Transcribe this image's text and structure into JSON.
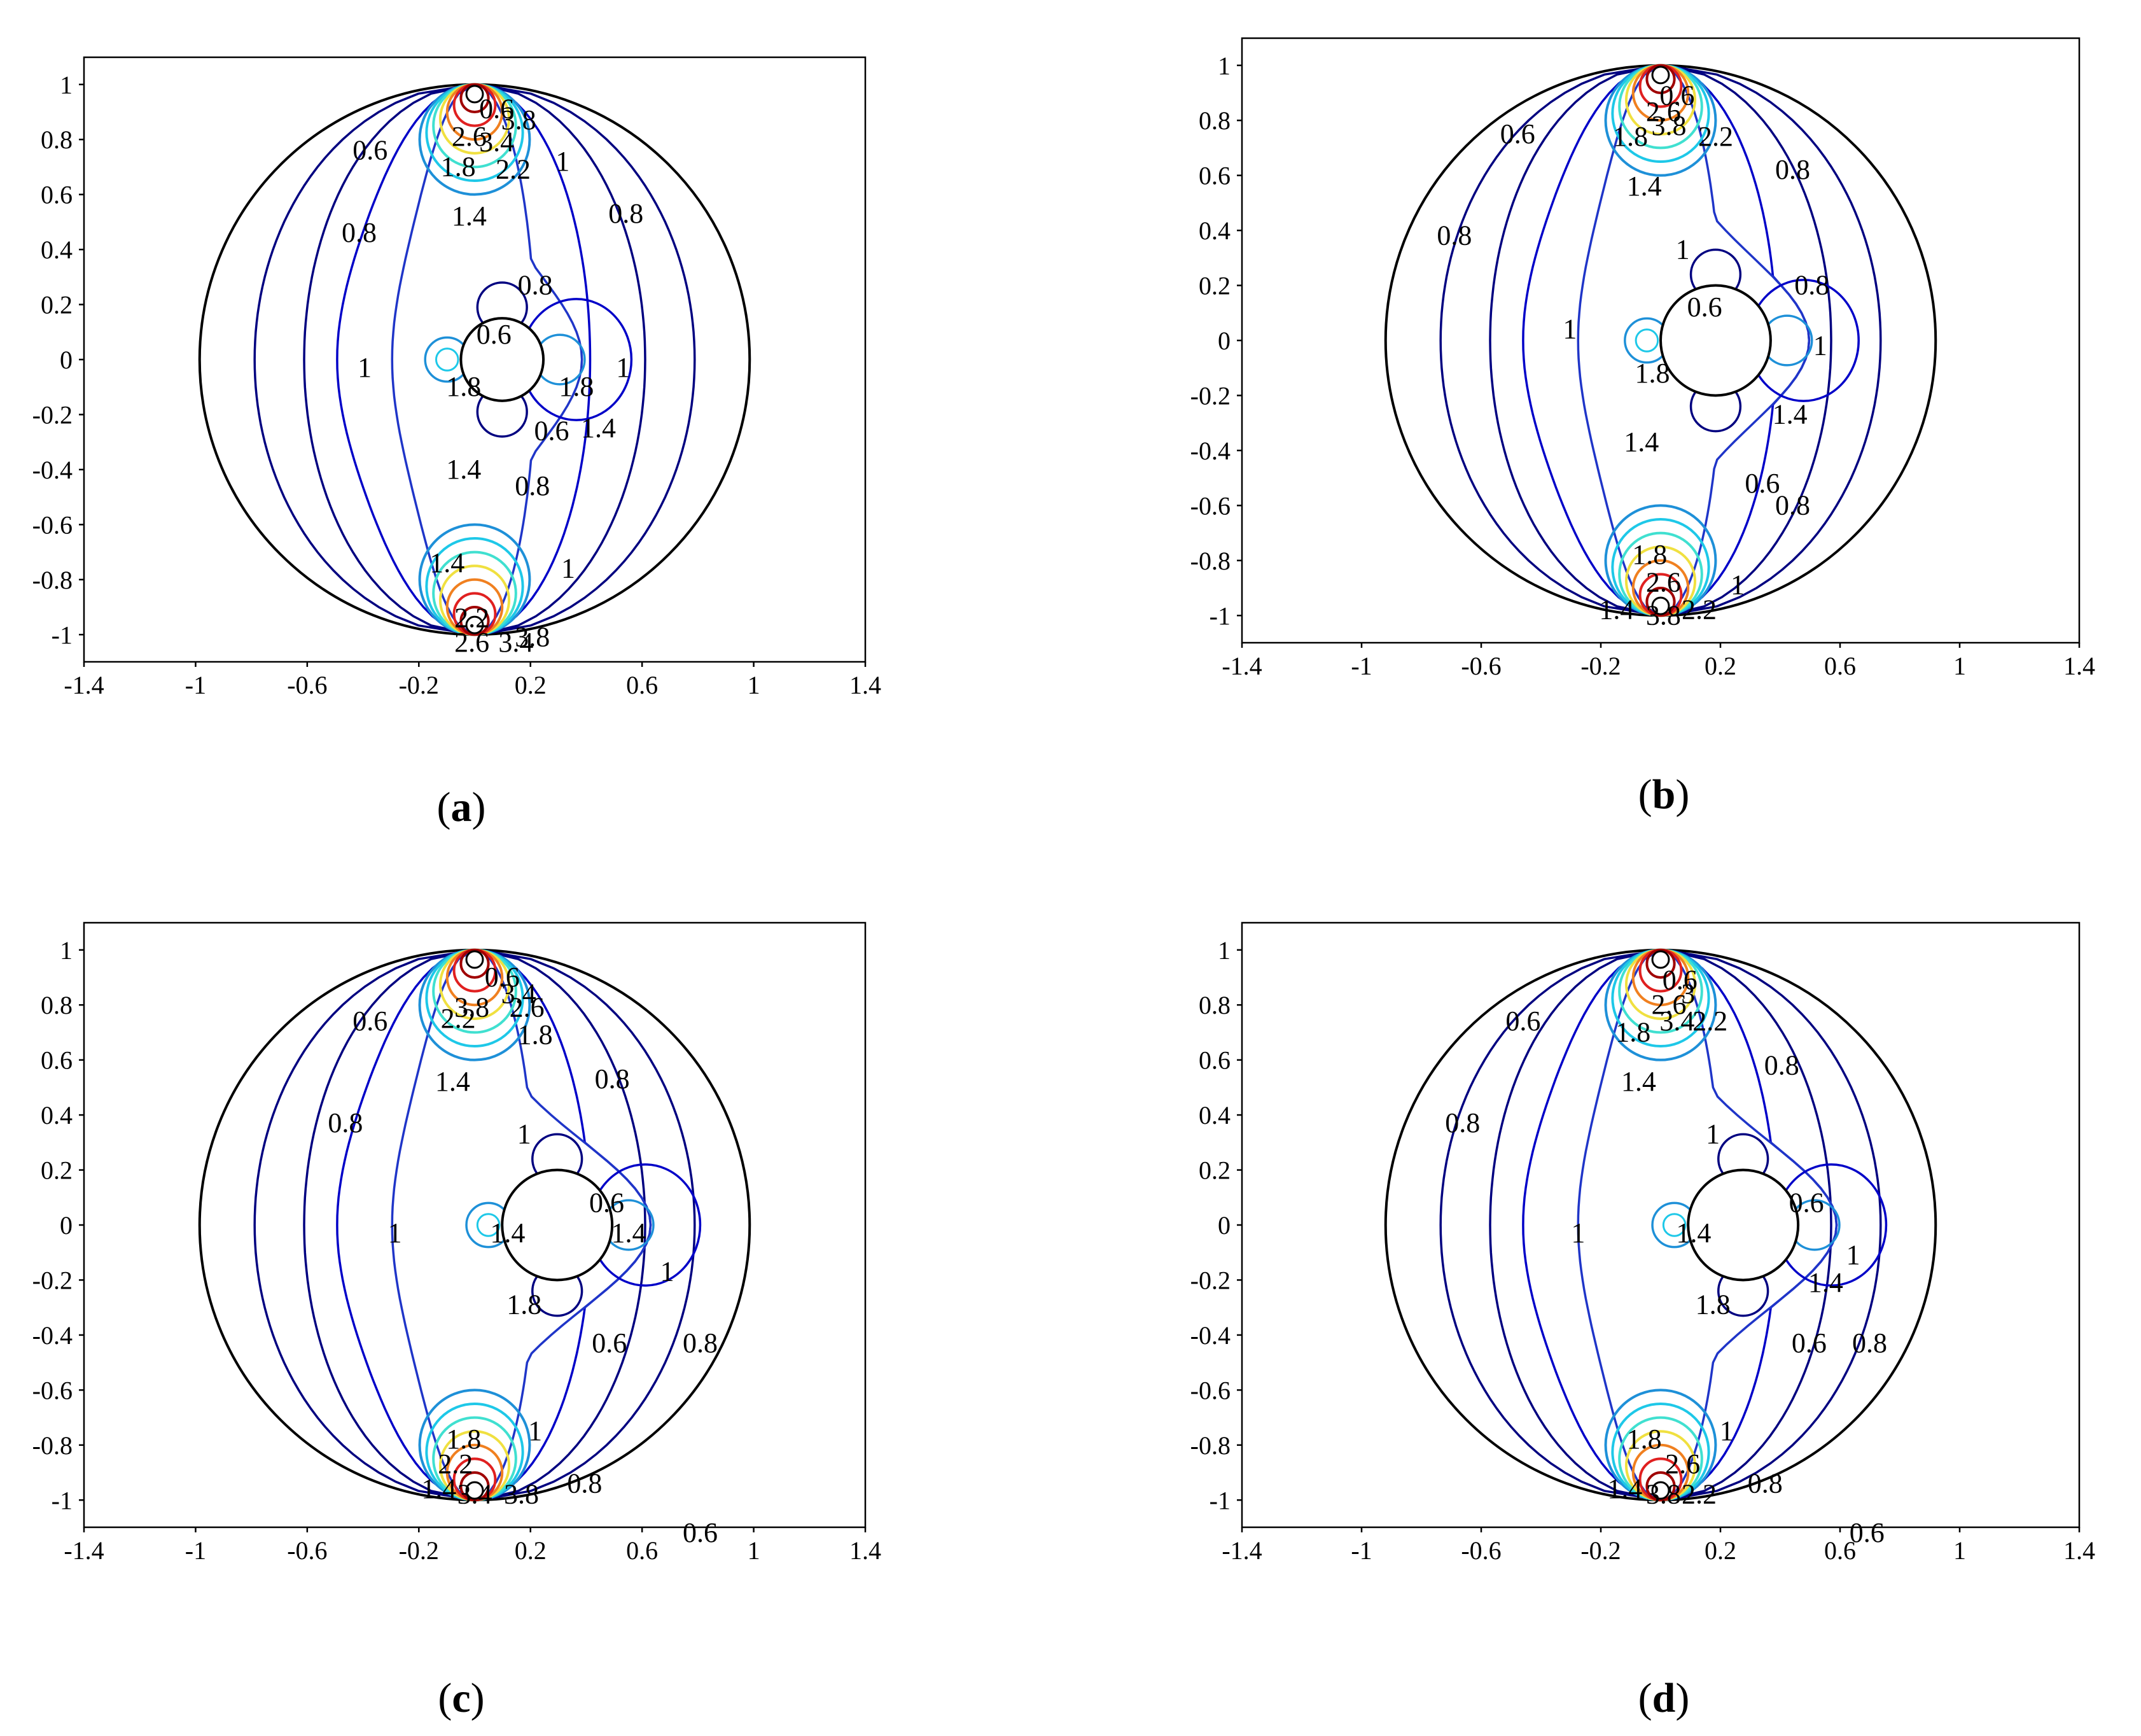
{
  "colors": {
    "boundary": "#000000",
    "level_0_6": "#000080",
    "level_0_8": "#0000c8",
    "level_1": "#1f35c8",
    "level_1_4": "#1e90d8",
    "level_1_8": "#1ec8e8",
    "level_2_2": "#40e0d0",
    "level_2_6": "#f0e040",
    "level_3": "#f08020",
    "level_3_4": "#e02020",
    "level_3_8": "#a00000"
  },
  "chart_data": [
    {
      "type": "contour",
      "caption": "a",
      "x_ticks": [
        "-1.4",
        "-1",
        "-0.6",
        "-0.2",
        "0.2",
        "0.6",
        "1",
        "1.4"
      ],
      "y_ticks": [
        "1",
        "0.8",
        "0.6",
        "0.4",
        "0.2",
        "0",
        "-0.2",
        "-0.4",
        "-0.6",
        "-0.8",
        "-1"
      ],
      "xlim": [
        -1.4,
        1.4
      ],
      "ylim": [
        -1.1,
        1.1
      ],
      "outer_circle": {
        "cx": 0,
        "cy": 0,
        "r": 1
      },
      "inner_cylinder": {
        "cx": 0.1,
        "cy": 0,
        "r": 0.15
      },
      "sources": [
        {
          "x": 0,
          "y": 1
        },
        {
          "x": 0,
          "y": -1
        }
      ],
      "labels": [
        {
          "text": "0.6",
          "x": -0.38,
          "y": 0.76
        },
        {
          "text": "0.8",
          "x": -0.42,
          "y": 0.46
        },
        {
          "text": "1",
          "x": -0.4,
          "y": -0.03
        },
        {
          "text": "1.4",
          "x": -0.02,
          "y": 0.52
        },
        {
          "text": "1.8",
          "x": -0.06,
          "y": 0.7
        },
        {
          "text": "2.2",
          "x": 0.14,
          "y": 0.69
        },
        {
          "text": "2.6",
          "x": -0.02,
          "y": 0.81
        },
        {
          "text": "3.4",
          "x": 0.08,
          "y": 0.79
        },
        {
          "text": "0.6",
          "x": 0.08,
          "y": 0.91
        },
        {
          "text": "3.8",
          "x": 0.16,
          "y": 0.87
        },
        {
          "text": "1",
          "x": 0.32,
          "y": 0.72
        },
        {
          "text": "0.8",
          "x": 0.55,
          "y": 0.53
        },
        {
          "text": "0.8",
          "x": 0.22,
          "y": 0.27
        },
        {
          "text": "0.6",
          "x": 0.07,
          "y": 0.09
        },
        {
          "text": "1.8",
          "x": -0.04,
          "y": -0.1
        },
        {
          "text": "1.8",
          "x": 0.37,
          "y": -0.1
        },
        {
          "text": "1",
          "x": 0.54,
          "y": -0.03
        },
        {
          "text": "1.4",
          "x": 0.45,
          "y": -0.25
        },
        {
          "text": "1.4",
          "x": -0.04,
          "y": -0.4
        },
        {
          "text": "0.6",
          "x": 0.28,
          "y": -0.26
        },
        {
          "text": "0.8",
          "x": 0.21,
          "y": -0.46
        },
        {
          "text": "1",
          "x": 0.34,
          "y": -0.76
        },
        {
          "text": "1.4",
          "x": -0.1,
          "y": -0.74
        },
        {
          "text": "2.2",
          "x": -0.01,
          "y": -0.94
        },
        {
          "text": "2.6",
          "x": -0.01,
          "y": -1.03
        },
        {
          "text": "3.4",
          "x": 0.15,
          "y": -1.03
        },
        {
          "text": "3.8",
          "x": 0.21,
          "y": -1.01
        }
      ]
    },
    {
      "type": "contour",
      "caption": "b",
      "x_ticks": [
        "-1.4",
        "-1",
        "-0.6",
        "-0.2",
        "0.2",
        "0.6",
        "1",
        "1.4"
      ],
      "y_ticks": [
        "1",
        "0.8",
        "0.6",
        "0.4",
        "0.2",
        "0",
        "-0.2",
        "-0.4",
        "-0.6",
        "-0.8",
        "-1"
      ],
      "xlim": [
        -1.4,
        1.4
      ],
      "ylim": [
        -1.1,
        1.1
      ],
      "outer_circle": {
        "cx": 0,
        "cy": 0,
        "r": 1
      },
      "inner_cylinder": {
        "cx": 0.2,
        "cy": 0,
        "r": 0.2
      },
      "sources": [
        {
          "x": 0,
          "y": 1
        },
        {
          "x": 0,
          "y": -1
        }
      ],
      "labels": [
        {
          "text": "0.6",
          "x": -0.52,
          "y": 0.75
        },
        {
          "text": "0.8",
          "x": -0.75,
          "y": 0.38
        },
        {
          "text": "1",
          "x": -0.33,
          "y": 0.04
        },
        {
          "text": "1.4",
          "x": -0.06,
          "y": 0.56
        },
        {
          "text": "1.8",
          "x": -0.11,
          "y": 0.74
        },
        {
          "text": "2.2",
          "x": 0.2,
          "y": 0.74
        },
        {
          "text": "3.8",
          "x": 0.03,
          "y": 0.78
        },
        {
          "text": "2.6",
          "x": 0.01,
          "y": 0.83
        },
        {
          "text": "0.6",
          "x": 0.06,
          "y": 0.89
        },
        {
          "text": "0.8",
          "x": 0.48,
          "y": 0.62
        },
        {
          "text": "1",
          "x": 0.08,
          "y": 0.33
        },
        {
          "text": "0.8",
          "x": 0.55,
          "y": 0.2
        },
        {
          "text": "0.6",
          "x": 0.16,
          "y": 0.12
        },
        {
          "text": "1",
          "x": 0.58,
          "y": -0.02
        },
        {
          "text": "1.8",
          "x": -0.03,
          "y": -0.12
        },
        {
          "text": "1.4",
          "x": 0.47,
          "y": -0.27
        },
        {
          "text": "1.4",
          "x": -0.07,
          "y": -0.37
        },
        {
          "text": "0.6",
          "x": 0.37,
          "y": -0.52
        },
        {
          "text": "0.8",
          "x": 0.48,
          "y": -0.6
        },
        {
          "text": "1.8",
          "x": -0.04,
          "y": -0.78
        },
        {
          "text": "2.6",
          "x": 0.01,
          "y": -0.88
        },
        {
          "text": "1",
          "x": 0.28,
          "y": -0.89
        },
        {
          "text": "1.4",
          "x": -0.16,
          "y": -0.98
        },
        {
          "text": "3.8",
          "x": 0.01,
          "y": -1.0
        },
        {
          "text": "2.2",
          "x": 0.14,
          "y": -0.98
        }
      ]
    },
    {
      "type": "contour",
      "caption": "c",
      "x_ticks": [
        "-1.4",
        "-1",
        "-0.6",
        "-0.2",
        "0.2",
        "0.6",
        "1",
        "1.4"
      ],
      "y_ticks": [
        "1",
        "0.8",
        "0.6",
        "0.4",
        "0.2",
        "0",
        "-0.2",
        "-0.4",
        "-0.6",
        "-0.8",
        "-1"
      ],
      "xlim": [
        -1.4,
        1.4
      ],
      "ylim": [
        -1.1,
        1.1
      ],
      "outer_circle": {
        "cx": 0,
        "cy": 0,
        "r": 1
      },
      "inner_cylinder": {
        "cx": 0.3,
        "cy": 0,
        "r": 0.2
      },
      "sources": [
        {
          "x": 0,
          "y": 1
        },
        {
          "x": 0,
          "y": -1
        }
      ],
      "labels": [
        {
          "text": "0.6",
          "x": -0.38,
          "y": 0.74
        },
        {
          "text": "0.8",
          "x": -0.47,
          "y": 0.37
        },
        {
          "text": "1",
          "x": -0.29,
          "y": -0.03
        },
        {
          "text": "1.4",
          "x": -0.08,
          "y": 0.52
        },
        {
          "text": "2.2",
          "x": -0.06,
          "y": 0.75
        },
        {
          "text": "3.8",
          "x": -0.01,
          "y": 0.79
        },
        {
          "text": "2.6",
          "x": 0.19,
          "y": 0.79
        },
        {
          "text": "3.4",
          "x": 0.16,
          "y": 0.84
        },
        {
          "text": "0.6",
          "x": 0.1,
          "y": 0.9
        },
        {
          "text": "1.8",
          "x": 0.22,
          "y": 0.69
        },
        {
          "text": "0.8",
          "x": 0.5,
          "y": 0.53
        },
        {
          "text": "1",
          "x": 0.18,
          "y": 0.33
        },
        {
          "text": "0.6",
          "x": 0.48,
          "y": 0.08
        },
        {
          "text": "1.4",
          "x": 0.12,
          "y": -0.03
        },
        {
          "text": "1.4",
          "x": 0.56,
          "y": -0.03
        },
        {
          "text": "1",
          "x": 0.7,
          "y": -0.17
        },
        {
          "text": "1.8",
          "x": 0.18,
          "y": -0.29
        },
        {
          "text": "0.6",
          "x": 0.49,
          "y": -0.43
        },
        {
          "text": "0.8",
          "x": 0.82,
          "y": -0.43
        },
        {
          "text": "1",
          "x": 0.22,
          "y": -0.75
        },
        {
          "text": "0.6",
          "x": 0.82,
          "y": -1.12
        },
        {
          "text": "1.8",
          "x": -0.04,
          "y": -0.78
        },
        {
          "text": "2.2",
          "x": -0.07,
          "y": -0.87
        },
        {
          "text": "0.8",
          "x": 0.4,
          "y": -0.94
        },
        {
          "text": "1.4",
          "x": -0.13,
          "y": -0.96
        },
        {
          "text": "3.4",
          "x": 0.0,
          "y": -0.98
        },
        {
          "text": "3.8",
          "x": 0.17,
          "y": -0.98
        }
      ]
    },
    {
      "type": "contour",
      "caption": "d",
      "x_ticks": [
        "-1.4",
        "-1",
        "-0.6",
        "-0.2",
        "0.2",
        "0.6",
        "1",
        "1.4"
      ],
      "y_ticks": [
        "1",
        "0.8",
        "0.6",
        "0.4",
        "0.2",
        "0",
        "-0.2",
        "-0.4",
        "-0.6",
        "-0.8",
        "-1"
      ],
      "xlim": [
        -1.4,
        1.4
      ],
      "ylim": [
        -1.1,
        1.1
      ],
      "outer_circle": {
        "cx": 0,
        "cy": 0,
        "r": 1
      },
      "inner_cylinder": {
        "cx": 0.3,
        "cy": 0,
        "r": 0.2
      },
      "sources": [
        {
          "x": 0,
          "y": 1
        },
        {
          "x": 0,
          "y": -1
        }
      ],
      "labels": [
        {
          "text": "0.6",
          "x": -0.5,
          "y": 0.74
        },
        {
          "text": "0.8",
          "x": -0.72,
          "y": 0.37
        },
        {
          "text": "1",
          "x": -0.3,
          "y": -0.03
        },
        {
          "text": "1.4",
          "x": -0.08,
          "y": 0.52
        },
        {
          "text": "1.8",
          "x": -0.1,
          "y": 0.7
        },
        {
          "text": "2.2",
          "x": 0.18,
          "y": 0.74
        },
        {
          "text": "3.4",
          "x": 0.06,
          "y": 0.74
        },
        {
          "text": "2.6",
          "x": 0.03,
          "y": 0.8
        },
        {
          "text": "3",
          "x": 0.1,
          "y": 0.84
        },
        {
          "text": "0.6",
          "x": 0.07,
          "y": 0.89
        },
        {
          "text": "0.8",
          "x": 0.44,
          "y": 0.58
        },
        {
          "text": "1",
          "x": 0.19,
          "y": 0.33
        },
        {
          "text": "0.6",
          "x": 0.53,
          "y": 0.08
        },
        {
          "text": "1.4",
          "x": 0.12,
          "y": -0.03
        },
        {
          "text": "1",
          "x": 0.7,
          "y": -0.11
        },
        {
          "text": "1.4",
          "x": 0.6,
          "y": -0.21
        },
        {
          "text": "1.8",
          "x": 0.19,
          "y": -0.29
        },
        {
          "text": "0.6",
          "x": 0.54,
          "y": -0.43
        },
        {
          "text": "0.8",
          "x": 0.76,
          "y": -0.43
        },
        {
          "text": "1",
          "x": 0.24,
          "y": -0.75
        },
        {
          "text": "0.6",
          "x": 0.75,
          "y": -1.12
        },
        {
          "text": "1.8",
          "x": -0.06,
          "y": -0.78
        },
        {
          "text": "2.6",
          "x": 0.08,
          "y": -0.87
        },
        {
          "text": "0.8",
          "x": 0.38,
          "y": -0.94
        },
        {
          "text": "1.4",
          "x": -0.13,
          "y": -0.96
        },
        {
          "text": "3.8",
          "x": 0.01,
          "y": -0.98
        },
        {
          "text": "2.2",
          "x": 0.14,
          "y": -0.98
        }
      ]
    }
  ]
}
